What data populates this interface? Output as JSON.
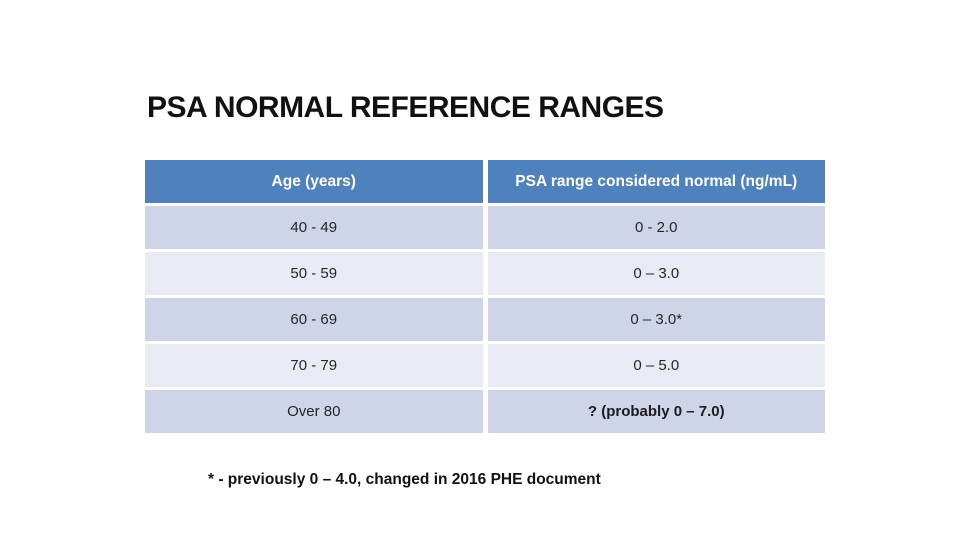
{
  "title": "PSA NORMAL REFERENCE RANGES",
  "table": {
    "headers": [
      "Age (years)",
      "PSA range considered normal (ng/mL)"
    ],
    "rows": [
      {
        "age": "40 - 49",
        "psa": "0 - 2.0"
      },
      {
        "age": "50 - 59",
        "psa": "0 – 3.0"
      },
      {
        "age": "60 - 69",
        "psa": "0 – 3.0*"
      },
      {
        "age": "70 - 79",
        "psa": "0 – 5.0"
      },
      {
        "age": "Over 80",
        "psa": "? (probably 0 – 7.0)"
      }
    ]
  },
  "footnote": "* - previously 0 – 4.0, changed in 2016 PHE document",
  "colors": {
    "header_bg": "#4F81BD",
    "header_text": "#FFFFFF",
    "row_band_dark": "#CFD5E8",
    "row_band_light": "#E9EBF4",
    "body_text": "#262626",
    "title_text": "#111111",
    "background": "#FFFFFF"
  }
}
